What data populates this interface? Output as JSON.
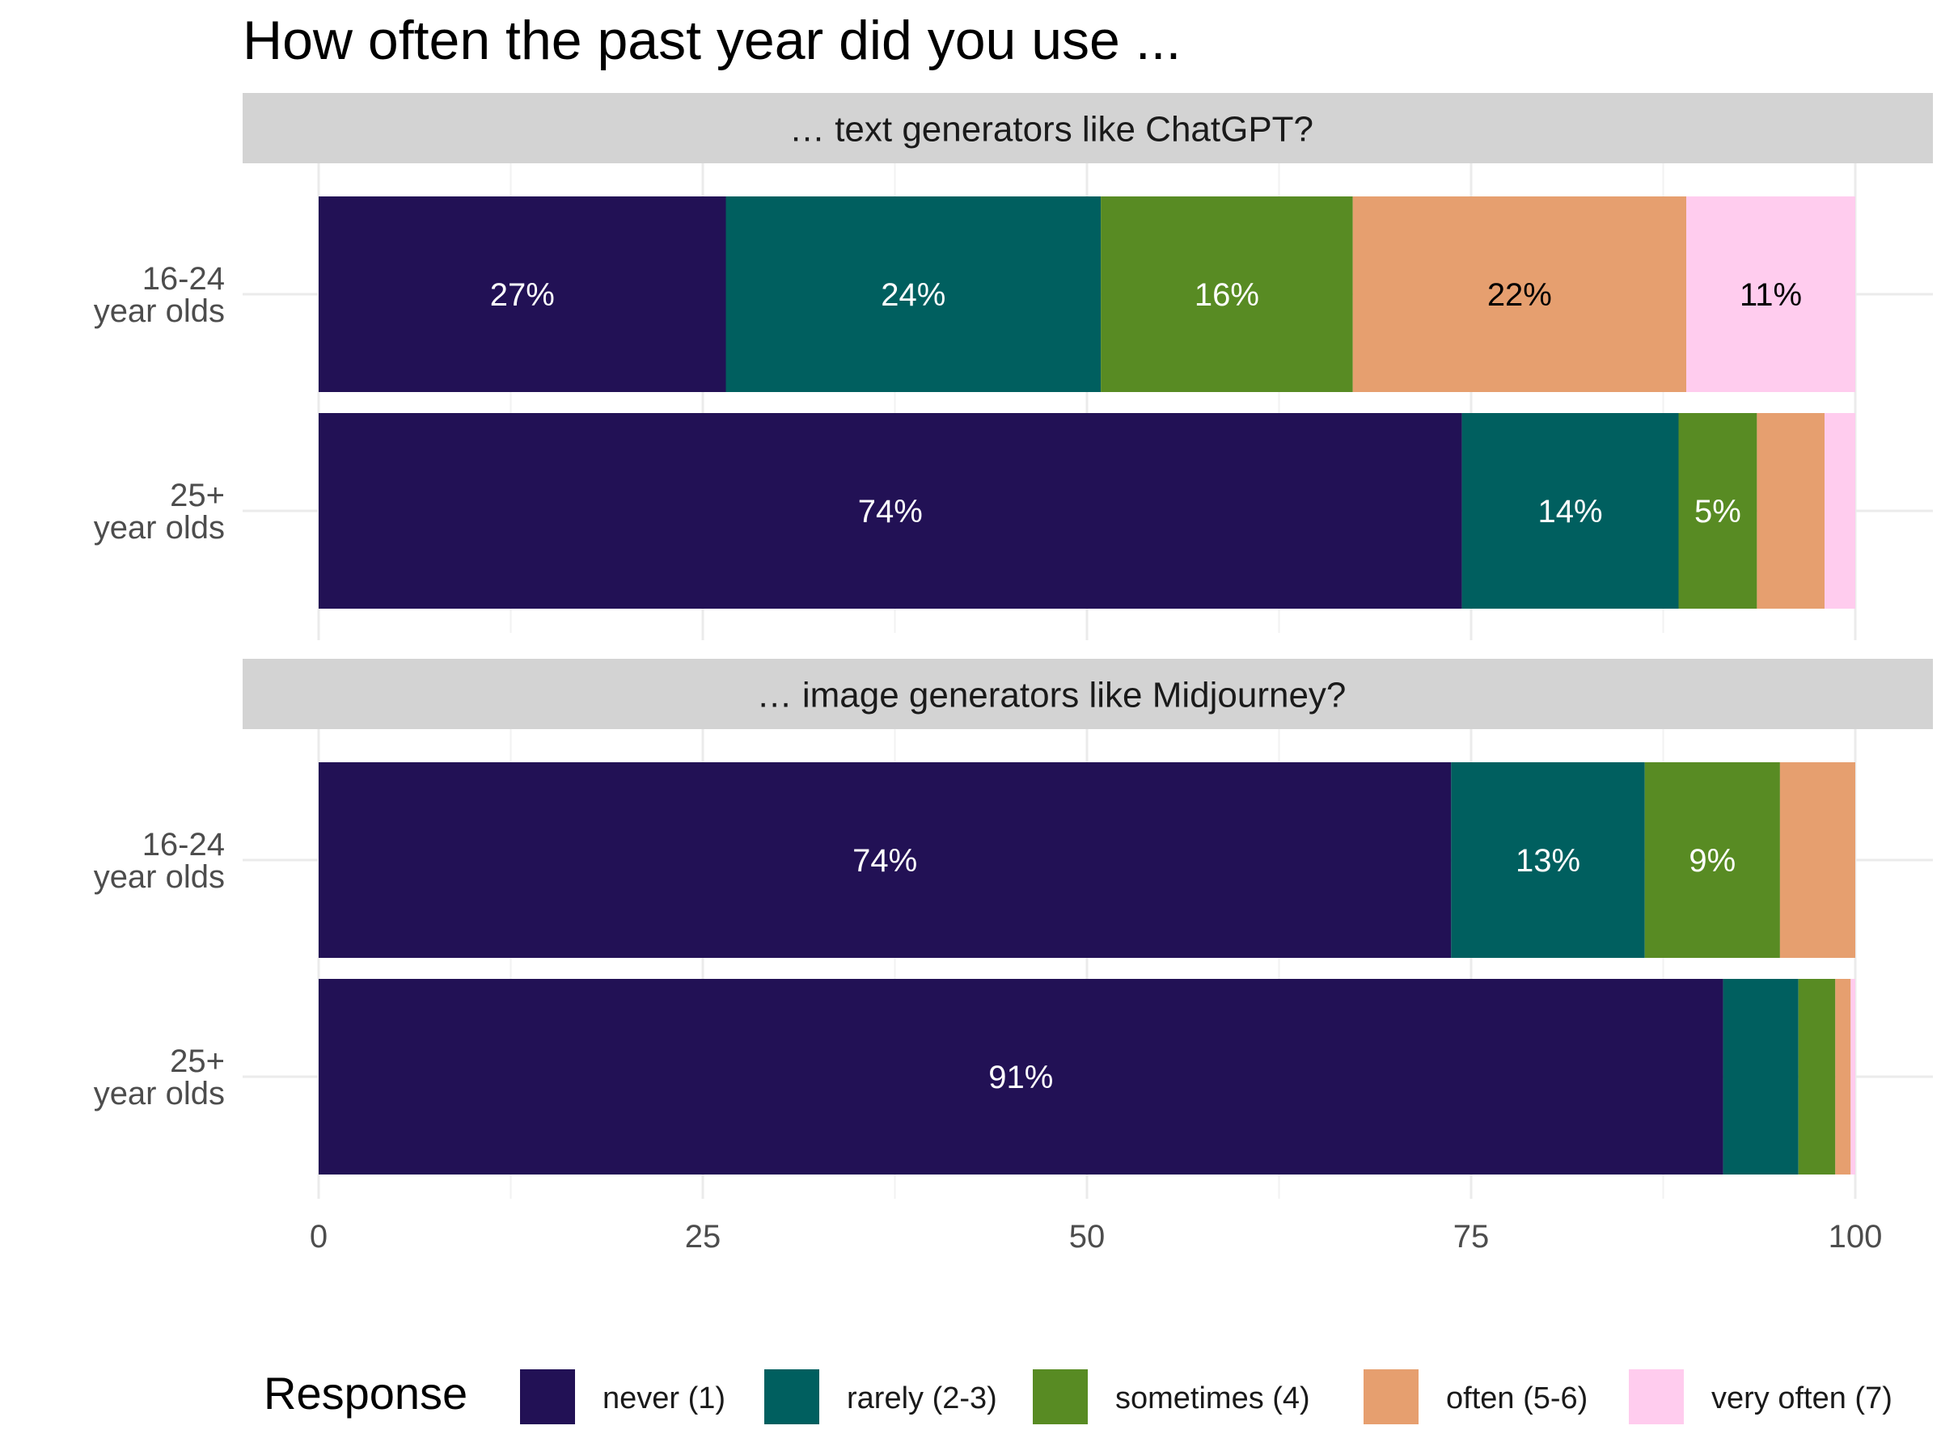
{
  "chart_data": {
    "type": "bar",
    "orientation": "horizontal",
    "stacked": true,
    "title": "How often the past year did you use ...",
    "xlim": [
      0,
      100
    ],
    "x_ticks": [
      "0",
      "25",
      "50",
      "75",
      "100"
    ],
    "x_tick_values": [
      0,
      25,
      50,
      75,
      100
    ],
    "grid": true,
    "legend_position": "bottom",
    "legend_title": "Response",
    "categories": [
      "16-24\nyear olds",
      "25+\nyear olds"
    ],
    "series": [
      {
        "name": "never (1)",
        "color": "#221155"
      },
      {
        "name": "rarely (2-3)",
        "color": "#005f5f"
      },
      {
        "name": "sometimes (4)",
        "color": "#588b23"
      },
      {
        "name": "often (5-6)",
        "color": "#e69f6f"
      },
      {
        "name": "very often (7)",
        "color": "#ffccee"
      }
    ],
    "panels": [
      {
        "title": "… text generators like ChatGPT?",
        "rows": [
          {
            "category": "16-24\nyear olds",
            "values": [
              26.5,
              24.4,
              16.4,
              21.7,
              11.0
            ],
            "labels": [
              "27%",
              "24%",
              "16%",
              "22%",
              "11%"
            ]
          },
          {
            "category": "25+\nyear olds",
            "values": [
              74.4,
              14.1,
              5.1,
              4.4,
              2.0
            ],
            "labels": [
              "74%",
              "14%",
              "5%",
              "",
              ""
            ]
          }
        ]
      },
      {
        "title": "… image generators like Midjourney?",
        "rows": [
          {
            "category": "16-24\nyear olds",
            "values": [
              73.7,
              12.6,
              8.8,
              4.9,
              0.0
            ],
            "labels": [
              "74%",
              "13%",
              "9%",
              "",
              ""
            ]
          },
          {
            "category": "25+\nyear olds",
            "values": [
              91.4,
              4.9,
              2.4,
              1.0,
              0.3
            ],
            "labels": [
              "91%",
              "",
              "",
              "",
              ""
            ]
          }
        ]
      }
    ]
  }
}
